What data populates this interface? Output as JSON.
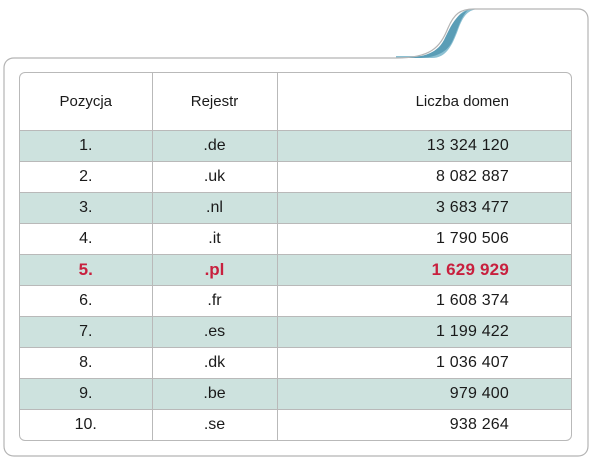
{
  "colors": {
    "shaded_row": "#cde2de",
    "highlight_text": "#c8203e",
    "tab_accent": "#5a9db6",
    "border": "#b9b9b9"
  },
  "table": {
    "headers": [
      "Pozycja",
      "Rejestr",
      "Liczba domen"
    ],
    "rows": [
      {
        "pos": "1.",
        "reg": ".de",
        "count": "13 324 120"
      },
      {
        "pos": "2.",
        "reg": ".uk",
        "count": "8 082 887"
      },
      {
        "pos": "3.",
        "reg": ".nl",
        "count": "3 683 477"
      },
      {
        "pos": "4.",
        "reg": ".it",
        "count": "1 790 506"
      },
      {
        "pos": "5.",
        "reg": ".pl",
        "count": "1 629 929"
      },
      {
        "pos": "6.",
        "reg": ".fr",
        "count": "1 608 374"
      },
      {
        "pos": "7.",
        "reg": ".es",
        "count": "1 199 422"
      },
      {
        "pos": "8.",
        "reg": ".dk",
        "count": "1 036 407"
      },
      {
        "pos": "9.",
        "reg": ".be",
        "count": "979 400"
      },
      {
        "pos": "10.",
        "reg": ".se",
        "count": "938 264"
      }
    ]
  }
}
